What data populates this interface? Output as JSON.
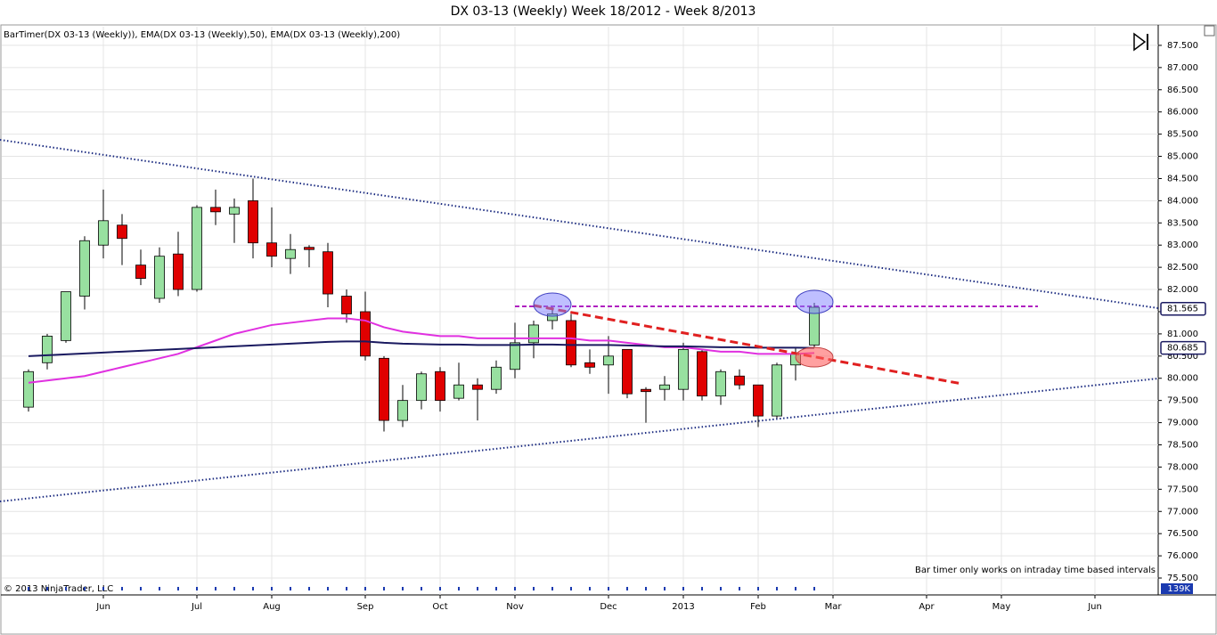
{
  "chart_data": {
    "type": "candlestick",
    "title": "DX 03-13 (Weekly)  Week 18/2012 - Week 8/2013",
    "indicator_legend": "BarTimer(DX 03-13 (Weekly)), EMA(DX 03-13 (Weekly),50), EMA(DX 03-13 (Weekly),200)",
    "note": "Bar timer only works on intraday time based intervals",
    "copyright": "© 2013 NinjaTrader, LLC",
    "status_label": "139K",
    "categories": [
      null,
      null,
      null,
      null,
      "Jun",
      null,
      null,
      null,
      null,
      "Jul",
      null,
      null,
      null,
      "Aug",
      null,
      null,
      null,
      null,
      "Sep",
      null,
      null,
      null,
      "Oct",
      null,
      null,
      null,
      "Nov",
      null,
      null,
      null,
      null,
      "Dec",
      null,
      null,
      null,
      "2013",
      null,
      null,
      null,
      "Feb",
      null,
      null,
      null,
      "Mar",
      null,
      null,
      null,
      null,
      "Apr",
      null,
      null,
      null,
      "May",
      null,
      null,
      null,
      null,
      "Jun",
      null,
      null,
      null
    ],
    "ohlc": {
      "open": [
        79.35,
        80.35,
        80.85,
        81.85,
        83.0,
        83.45,
        82.55,
        81.8,
        82.8,
        82.0,
        83.85,
        83.7,
        84.0,
        83.05,
        82.7,
        82.95,
        82.85,
        81.85,
        81.5,
        80.45,
        79.05,
        79.5,
        80.15,
        79.55,
        79.85,
        79.75,
        80.2,
        80.8,
        81.3,
        81.3,
        80.35,
        80.3,
        80.65,
        79.75,
        79.75,
        79.75,
        80.6,
        79.6,
        80.05,
        79.85,
        79.15,
        80.3,
        80.75
      ],
      "high": [
        80.2,
        81.0,
        81.95,
        83.2,
        84.25,
        83.7,
        82.9,
        82.95,
        83.3,
        83.9,
        84.25,
        84.05,
        84.5,
        83.85,
        83.25,
        83.0,
        83.05,
        82.0,
        81.95,
        80.5,
        79.85,
        80.15,
        80.25,
        80.35,
        80.0,
        80.4,
        81.25,
        81.3,
        81.6,
        81.45,
        80.65,
        80.95,
        80.65,
        79.8,
        80.05,
        80.8,
        80.65,
        80.2,
        80.2,
        79.85,
        80.35,
        80.7,
        81.7
      ],
      "low": [
        79.25,
        80.2,
        80.8,
        81.55,
        82.7,
        82.55,
        82.1,
        81.7,
        81.85,
        81.95,
        83.45,
        83.05,
        82.7,
        82.5,
        82.35,
        82.5,
        81.6,
        81.25,
        80.4,
        78.8,
        78.9,
        79.3,
        79.25,
        79.5,
        79.05,
        79.65,
        80.0,
        80.45,
        81.1,
        80.25,
        80.1,
        79.65,
        79.55,
        79.0,
        79.5,
        79.5,
        79.5,
        79.4,
        79.75,
        78.9,
        79.1,
        79.95,
        80.7
      ],
      "close": [
        80.15,
        80.95,
        81.95,
        83.1,
        83.55,
        83.15,
        82.25,
        82.75,
        82.0,
        83.85,
        83.75,
        83.85,
        83.05,
        82.75,
        82.9,
        82.9,
        81.9,
        81.45,
        80.5,
        79.05,
        79.5,
        80.1,
        79.5,
        79.85,
        79.75,
        80.25,
        80.8,
        81.2,
        81.45,
        80.3,
        80.25,
        80.5,
        79.65,
        79.7,
        79.85,
        80.65,
        79.6,
        80.15,
        79.85,
        79.15,
        80.3,
        80.55,
        81.6
      ]
    },
    "up_color": "#98e0a0",
    "down_color": "#e00000",
    "lines": [
      {
        "color": "#e030e0",
        "values": [
          79.9,
          79.95,
          80.0,
          80.05,
          80.15,
          80.25,
          80.35,
          80.45,
          80.55,
          80.7,
          80.85,
          81.0,
          81.1,
          81.2,
          81.25,
          81.3,
          81.35,
          81.35,
          81.3,
          81.15,
          81.05,
          81.0,
          80.95,
          80.95,
          80.9,
          80.9,
          80.9,
          80.9,
          80.9,
          80.9,
          80.85,
          80.85,
          80.8,
          80.75,
          80.7,
          80.7,
          80.65,
          80.6,
          80.6,
          80.55,
          80.55,
          80.55,
          80.57
        ]
      },
      {
        "color": "#1a1a60",
        "values": [
          80.5,
          80.52,
          80.54,
          80.56,
          80.58,
          80.6,
          80.62,
          80.64,
          80.66,
          80.68,
          80.7,
          80.72,
          80.74,
          80.76,
          80.78,
          80.8,
          80.82,
          80.83,
          80.83,
          80.8,
          80.78,
          80.77,
          80.76,
          80.76,
          80.75,
          80.75,
          80.75,
          80.76,
          80.76,
          80.75,
          80.75,
          80.75,
          80.74,
          80.73,
          80.72,
          80.72,
          80.71,
          80.7,
          80.7,
          80.69,
          80.69,
          80.69,
          80.685
        ]
      }
    ],
    "price_markers": [
      {
        "value": 81.565,
        "label": "81.565"
      },
      {
        "value": 80.685,
        "label": "80.685"
      }
    ],
    "ylim": [
      75.38,
      87.92
    ],
    "yticks": [
      {
        "value": 75.5,
        "label": "75.500"
      },
      {
        "value": 76,
        "label": "76.000"
      },
      {
        "value": 76.5,
        "label": "76.500"
      },
      {
        "value": 77,
        "label": "77.000"
      },
      {
        "value": 77.5,
        "label": "77.500"
      },
      {
        "value": 78,
        "label": "78.000"
      },
      {
        "value": 78.5,
        "label": "78.500"
      },
      {
        "value": 79,
        "label": "79.000"
      },
      {
        "value": 79.5,
        "label": "79.500"
      },
      {
        "value": 80,
        "label": "80.000"
      },
      {
        "value": 80.5,
        "label": "80.500"
      },
      {
        "value": 81,
        "label": "81.000"
      },
      {
        "value": 81.5,
        "label": "81.500"
      },
      {
        "value": 82,
        "label": "82.000"
      },
      {
        "value": 82.5,
        "label": "82.500"
      },
      {
        "value": 83,
        "label": "83.000"
      },
      {
        "value": 83.5,
        "label": "83.500"
      },
      {
        "value": 84,
        "label": "84.000"
      },
      {
        "value": 84.5,
        "label": "84.500"
      },
      {
        "value": 85,
        "label": "85.000"
      },
      {
        "value": 85.5,
        "label": "85.500"
      },
      {
        "value": 86,
        "label": "86.000"
      },
      {
        "value": 86.5,
        "label": "86.500"
      },
      {
        "value": 87,
        "label": "87.000"
      },
      {
        "value": 87.5,
        "label": "87.500"
      }
    ],
    "grid": true
  }
}
